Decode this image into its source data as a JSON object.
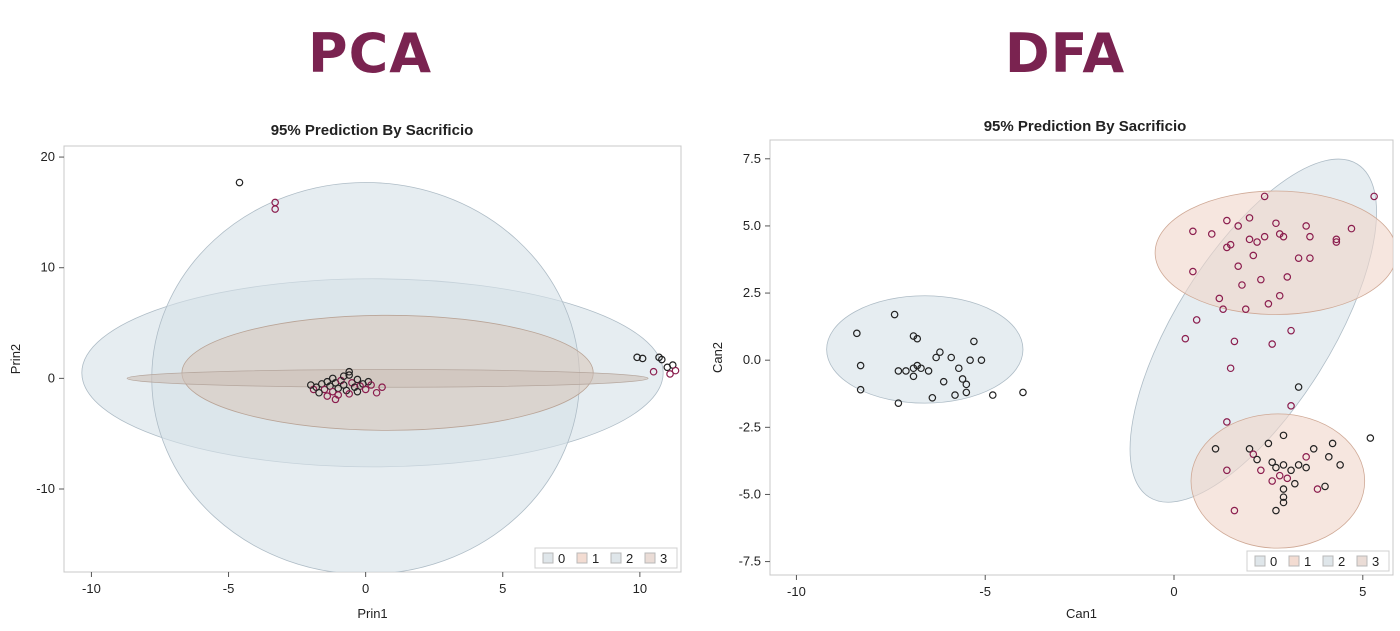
{
  "headings": {
    "left": "PCA",
    "right": "DFA"
  },
  "colors": {
    "heading": "#7a2350",
    "frame": "#c8c8c8",
    "point_black": "#222222",
    "point_maroon": "#8b1d4e"
  },
  "chart_data": [
    {
      "type": "scatter",
      "title": "95% Prediction By Sacrificio",
      "xlabel": "Prin1",
      "ylabel": "Prin2",
      "xlim": [
        -11,
        11.5
      ],
      "ylim": [
        -17.5,
        21
      ],
      "xticks": [
        "-10",
        "-5",
        "0",
        "5",
        "10"
      ],
      "xtick_values": [
        -10,
        -5,
        0,
        5,
        10
      ],
      "yticks": [
        "20",
        "10",
        "0",
        "-10"
      ],
      "ytick_values": [
        20,
        10,
        0,
        -10
      ],
      "legend": [
        "0",
        "1",
        "2",
        "3"
      ],
      "legend_colors": [
        "#dfe6ea",
        "#f3dcd2",
        "#dfe6ea",
        "#eadcd6"
      ],
      "legend_placement": "bottom-right",
      "grid": false,
      "ellipses": [
        {
          "group": "2",
          "cx": 0.25,
          "cy": 0.5,
          "rx": 10.6,
          "ry": 8.5,
          "angle": 0,
          "fill": "#d6e1e7",
          "stroke": "#aebcc6"
        },
        {
          "group": "0",
          "cx": 0.0,
          "cy": 0.0,
          "rx": 7.8,
          "ry": 17.7,
          "angle": 0,
          "fill": "#d6e1e7",
          "stroke": "#aebcc6"
        },
        {
          "group": "1",
          "cx": 0.8,
          "cy": 0.5,
          "rx": 7.5,
          "ry": 5.2,
          "angle": 0,
          "fill": "#d9c8bd",
          "stroke": "#b9a497"
        },
        {
          "group": "3",
          "cx": 0.8,
          "cy": 0.0,
          "rx": 9.5,
          "ry": 0.8,
          "angle": 0,
          "fill": "#cdbfb7",
          "stroke": "#b5a69d"
        }
      ],
      "points": [
        {
          "x": -4.6,
          "y": 17.7,
          "g": "0"
        },
        {
          "x": -3.3,
          "y": 15.9,
          "g": "1"
        },
        {
          "x": -3.3,
          "y": 15.3,
          "g": "1"
        },
        {
          "x": 9.9,
          "y": 1.9,
          "g": "0"
        },
        {
          "x": 10.1,
          "y": 1.8,
          "g": "0"
        },
        {
          "x": 10.7,
          "y": 1.9,
          "g": "0"
        },
        {
          "x": 10.8,
          "y": 1.7,
          "g": "0"
        },
        {
          "x": 10.5,
          "y": 0.6,
          "g": "1"
        },
        {
          "x": 11.0,
          "y": 1.0,
          "g": "0"
        },
        {
          "x": 11.2,
          "y": 1.2,
          "g": "0"
        },
        {
          "x": 11.1,
          "y": 0.4,
          "g": "1"
        },
        {
          "x": 11.3,
          "y": 0.7,
          "g": "1"
        },
        {
          "x": -1.8,
          "y": -0.8,
          "g": "0"
        },
        {
          "x": -1.6,
          "y": -0.5,
          "g": "0"
        },
        {
          "x": -1.5,
          "y": -1.0,
          "g": "1"
        },
        {
          "x": -1.4,
          "y": -0.3,
          "g": "0"
        },
        {
          "x": -1.3,
          "y": -0.7,
          "g": "0"
        },
        {
          "x": -1.2,
          "y": -1.2,
          "g": "1"
        },
        {
          "x": -1.1,
          "y": -0.4,
          "g": "0"
        },
        {
          "x": -1.0,
          "y": -0.9,
          "g": "0"
        },
        {
          "x": -0.9,
          "y": -0.2,
          "g": "1"
        },
        {
          "x": -0.8,
          "y": -0.6,
          "g": "0"
        },
        {
          "x": -0.7,
          "y": -1.1,
          "g": "0"
        },
        {
          "x": -0.6,
          "y": 0.3,
          "g": "0"
        },
        {
          "x": -0.5,
          "y": -0.4,
          "g": "1"
        },
        {
          "x": -0.4,
          "y": -0.8,
          "g": "0"
        },
        {
          "x": -0.3,
          "y": -0.1,
          "g": "0"
        },
        {
          "x": -0.2,
          "y": -0.7,
          "g": "1"
        },
        {
          "x": -0.1,
          "y": -0.5,
          "g": "0"
        },
        {
          "x": 0.0,
          "y": -1.0,
          "g": "1"
        },
        {
          "x": 0.1,
          "y": -0.3,
          "g": "0"
        },
        {
          "x": 0.2,
          "y": -0.6,
          "g": "1"
        },
        {
          "x": 0.4,
          "y": -1.3,
          "g": "1"
        },
        {
          "x": -1.9,
          "y": -1.0,
          "g": "1"
        },
        {
          "x": -1.7,
          "y": -1.3,
          "g": "0"
        },
        {
          "x": -1.4,
          "y": -1.6,
          "g": "1"
        },
        {
          "x": -1.0,
          "y": -1.5,
          "g": "1"
        },
        {
          "x": -0.6,
          "y": -1.4,
          "g": "1"
        },
        {
          "x": -0.3,
          "y": -1.2,
          "g": "0"
        },
        {
          "x": -1.2,
          "y": 0.0,
          "g": "0"
        },
        {
          "x": -0.8,
          "y": 0.2,
          "g": "0"
        },
        {
          "x": -0.6,
          "y": 0.6,
          "g": "0"
        },
        {
          "x": 0.6,
          "y": -0.8,
          "g": "1"
        },
        {
          "x": -2.0,
          "y": -0.6,
          "g": "0"
        },
        {
          "x": -1.1,
          "y": -1.9,
          "g": "1"
        }
      ]
    },
    {
      "type": "scatter",
      "title": "95% Prediction By Sacrificio",
      "xlabel": "Can1",
      "ylabel": "Can2",
      "xlim": [
        -10.7,
        5.8
      ],
      "ylim": [
        -8.0,
        8.2
      ],
      "xticks": [
        "-10",
        "-5",
        "0",
        "5"
      ],
      "xtick_values": [
        -10,
        -5,
        0,
        5
      ],
      "yticks": [
        "7.5",
        "5.0",
        "2.5",
        "0.0",
        "-2.5",
        "-5.0",
        "-7.5"
      ],
      "ytick_values": [
        7.5,
        5.0,
        2.5,
        0.0,
        -2.5,
        -5.0,
        -7.5
      ],
      "legend": [
        "0",
        "1",
        "2",
        "3"
      ],
      "legend_colors": [
        "#dfe6ea",
        "#f3dcd2",
        "#dfe6ea",
        "#eadcd6"
      ],
      "legend_placement": "bottom-right",
      "grid": false,
      "ellipses": [
        {
          "group": "0",
          "cx": -6.6,
          "cy": 0.4,
          "rx": 2.6,
          "ry": 2.0,
          "angle": 0,
          "fill": "#d6e1e7",
          "stroke": "#aebcc6"
        },
        {
          "group": "2",
          "cx": 2.1,
          "cy": 1.1,
          "rx": 5.2,
          "ry": 2.9,
          "angle": -58,
          "fill": "#d6e1e7",
          "stroke": "#aebcc6"
        },
        {
          "group": "1",
          "cx": 2.7,
          "cy": 4.0,
          "rx": 3.2,
          "ry": 2.3,
          "angle": 0,
          "fill": "#f0d5c9",
          "stroke": "#cfa996"
        },
        {
          "group": "3",
          "cx": 2.75,
          "cy": -4.5,
          "rx": 2.3,
          "ry": 2.5,
          "angle": 0,
          "fill": "#f0d5c9",
          "stroke": "#cfa996"
        }
      ],
      "points": [
        {
          "x": -8.4,
          "y": 1.0,
          "g": "0"
        },
        {
          "x": -8.3,
          "y": -0.2,
          "g": "0"
        },
        {
          "x": -8.3,
          "y": -1.1,
          "g": "0"
        },
        {
          "x": -7.4,
          "y": 1.7,
          "g": "0"
        },
        {
          "x": -7.3,
          "y": -0.4,
          "g": "0"
        },
        {
          "x": -7.1,
          "y": -0.4,
          "g": "0"
        },
        {
          "x": -7.3,
          "y": -1.6,
          "g": "0"
        },
        {
          "x": -6.9,
          "y": 0.9,
          "g": "0"
        },
        {
          "x": -6.8,
          "y": 0.8,
          "g": "0"
        },
        {
          "x": -6.9,
          "y": -0.3,
          "g": "0"
        },
        {
          "x": -6.8,
          "y": -0.2,
          "g": "0"
        },
        {
          "x": -6.7,
          "y": -0.3,
          "g": "0"
        },
        {
          "x": -6.9,
          "y": -0.6,
          "g": "0"
        },
        {
          "x": -6.5,
          "y": -0.4,
          "g": "0"
        },
        {
          "x": -6.3,
          "y": 0.1,
          "g": "0"
        },
        {
          "x": -6.2,
          "y": 0.3,
          "g": "0"
        },
        {
          "x": -6.4,
          "y": -1.4,
          "g": "0"
        },
        {
          "x": -6.1,
          "y": -0.8,
          "g": "0"
        },
        {
          "x": -5.9,
          "y": 0.1,
          "g": "0"
        },
        {
          "x": -5.8,
          "y": -1.3,
          "g": "0"
        },
        {
          "x": -5.7,
          "y": -0.3,
          "g": "0"
        },
        {
          "x": -5.6,
          "y": -0.7,
          "g": "0"
        },
        {
          "x": -5.5,
          "y": -0.9,
          "g": "0"
        },
        {
          "x": -5.4,
          "y": 0.0,
          "g": "0"
        },
        {
          "x": -5.3,
          "y": 0.7,
          "g": "0"
        },
        {
          "x": -5.1,
          "y": 0.0,
          "g": "0"
        },
        {
          "x": -5.5,
          "y": -1.2,
          "g": "0"
        },
        {
          "x": -4.8,
          "y": -1.3,
          "g": "0"
        },
        {
          "x": -4.0,
          "y": -1.2,
          "g": "0"
        },
        {
          "x": 0.5,
          "y": 4.8,
          "g": "1"
        },
        {
          "x": 0.5,
          "y": 3.3,
          "g": "1"
        },
        {
          "x": 0.6,
          "y": 1.5,
          "g": "1"
        },
        {
          "x": 0.3,
          "y": 0.8,
          "g": "1"
        },
        {
          "x": 1.0,
          "y": 4.7,
          "g": "1"
        },
        {
          "x": 1.2,
          "y": 2.3,
          "g": "1"
        },
        {
          "x": 1.3,
          "y": 1.9,
          "g": "1"
        },
        {
          "x": 1.4,
          "y": 5.2,
          "g": "1"
        },
        {
          "x": 1.4,
          "y": 4.2,
          "g": "1"
        },
        {
          "x": 1.5,
          "y": 4.3,
          "g": "1"
        },
        {
          "x": 1.6,
          "y": 0.7,
          "g": "1"
        },
        {
          "x": 1.7,
          "y": 5.0,
          "g": "1"
        },
        {
          "x": 1.7,
          "y": 3.5,
          "g": "1"
        },
        {
          "x": 1.8,
          "y": 2.8,
          "g": "1"
        },
        {
          "x": 1.9,
          "y": 1.9,
          "g": "1"
        },
        {
          "x": 2.0,
          "y": 5.3,
          "g": "1"
        },
        {
          "x": 2.0,
          "y": 4.5,
          "g": "1"
        },
        {
          "x": 2.1,
          "y": 3.9,
          "g": "1"
        },
        {
          "x": 2.2,
          "y": 4.4,
          "g": "1"
        },
        {
          "x": 2.3,
          "y": 3.0,
          "g": "1"
        },
        {
          "x": 2.4,
          "y": 6.1,
          "g": "1"
        },
        {
          "x": 2.4,
          "y": 4.6,
          "g": "1"
        },
        {
          "x": 2.5,
          "y": 2.1,
          "g": "1"
        },
        {
          "x": 2.6,
          "y": 0.6,
          "g": "1"
        },
        {
          "x": 2.7,
          "y": 5.1,
          "g": "1"
        },
        {
          "x": 2.8,
          "y": 4.7,
          "g": "1"
        },
        {
          "x": 2.8,
          "y": 2.4,
          "g": "1"
        },
        {
          "x": 2.9,
          "y": 4.6,
          "g": "1"
        },
        {
          "x": 3.0,
          "y": 3.1,
          "g": "1"
        },
        {
          "x": 3.1,
          "y": 1.1,
          "g": "1"
        },
        {
          "x": 3.3,
          "y": 3.8,
          "g": "1"
        },
        {
          "x": 3.5,
          "y": 5.0,
          "g": "1"
        },
        {
          "x": 3.6,
          "y": 4.6,
          "g": "1"
        },
        {
          "x": 3.6,
          "y": 3.8,
          "g": "1"
        },
        {
          "x": 4.3,
          "y": 4.5,
          "g": "1"
        },
        {
          "x": 4.3,
          "y": 4.4,
          "g": "1"
        },
        {
          "x": 4.7,
          "y": 4.9,
          "g": "1"
        },
        {
          "x": 5.3,
          "y": 6.1,
          "g": "1"
        },
        {
          "x": 1.5,
          "y": -0.3,
          "g": "1"
        },
        {
          "x": 3.1,
          "y": -1.7,
          "g": "1"
        },
        {
          "x": 3.3,
          "y": -1.0,
          "g": "0"
        },
        {
          "x": 1.4,
          "y": -2.3,
          "g": "1"
        },
        {
          "x": 1.4,
          "y": -4.1,
          "g": "1"
        },
        {
          "x": 2.0,
          "y": -3.3,
          "g": "0"
        },
        {
          "x": 2.1,
          "y": -3.5,
          "g": "1"
        },
        {
          "x": 2.2,
          "y": -3.7,
          "g": "0"
        },
        {
          "x": 2.3,
          "y": -4.1,
          "g": "1"
        },
        {
          "x": 2.5,
          "y": -3.1,
          "g": "0"
        },
        {
          "x": 2.6,
          "y": -3.8,
          "g": "0"
        },
        {
          "x": 2.6,
          "y": -4.5,
          "g": "1"
        },
        {
          "x": 2.7,
          "y": -4.0,
          "g": "0"
        },
        {
          "x": 2.8,
          "y": -4.3,
          "g": "1"
        },
        {
          "x": 2.9,
          "y": -2.8,
          "g": "0"
        },
        {
          "x": 2.9,
          "y": -3.9,
          "g": "0"
        },
        {
          "x": 3.0,
          "y": -4.4,
          "g": "1"
        },
        {
          "x": 3.1,
          "y": -4.1,
          "g": "0"
        },
        {
          "x": 3.2,
          "y": -4.6,
          "g": "0"
        },
        {
          "x": 3.3,
          "y": -3.9,
          "g": "0"
        },
        {
          "x": 3.5,
          "y": -4.0,
          "g": "0"
        },
        {
          "x": 3.5,
          "y": -3.6,
          "g": "1"
        },
        {
          "x": 3.7,
          "y": -3.3,
          "g": "0"
        },
        {
          "x": 3.8,
          "y": -4.8,
          "g": "1"
        },
        {
          "x": 4.0,
          "y": -4.7,
          "g": "0"
        },
        {
          "x": 4.1,
          "y": -3.6,
          "g": "0"
        },
        {
          "x": 4.2,
          "y": -3.1,
          "g": "0"
        },
        {
          "x": 4.4,
          "y": -3.9,
          "g": "0"
        },
        {
          "x": 5.2,
          "y": -2.9,
          "g": "0"
        },
        {
          "x": 2.9,
          "y": -4.8,
          "g": "0"
        },
        {
          "x": 2.9,
          "y": -5.1,
          "g": "0"
        },
        {
          "x": 2.9,
          "y": -5.3,
          "g": "0"
        },
        {
          "x": 2.7,
          "y": -5.6,
          "g": "0"
        },
        {
          "x": 1.6,
          "y": -5.6,
          "g": "1"
        },
        {
          "x": 1.1,
          "y": -3.3,
          "g": "0"
        }
      ]
    }
  ]
}
